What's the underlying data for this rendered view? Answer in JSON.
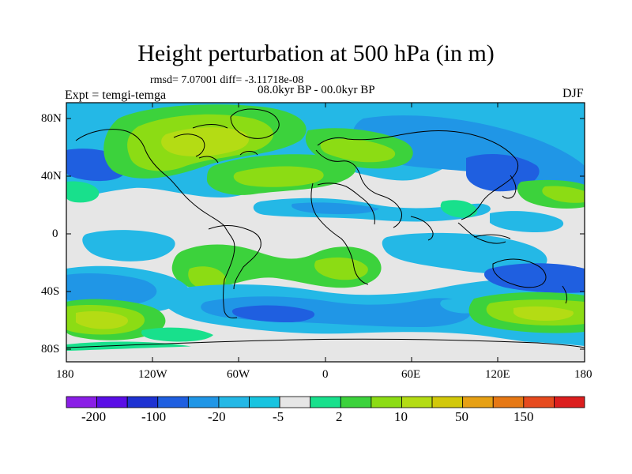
{
  "title": "Height perturbation at 500 hPa (in m)",
  "stats": "rmsd= 7.07001 diff= -3.11718e-08",
  "period": "08.0kyr BP - 00.0kyr BP",
  "experiment": "Expt = temgi-temga",
  "season": "DJF",
  "lat_ticks": [
    "80N",
    "40N",
    "0",
    "40S",
    "80S"
  ],
  "lon_ticks": [
    "180",
    "120W",
    "60W",
    "0",
    "60E",
    "120E",
    "180"
  ],
  "colorbar": {
    "colors": [
      "#8a1ee6",
      "#5a0ee6",
      "#1e32d2",
      "#1f5fe0",
      "#2096e6",
      "#24b8e6",
      "#18c4e0",
      "#e6e6e6",
      "#18e08c",
      "#3cd23c",
      "#8cdc14",
      "#b4dc14",
      "#d2c80a",
      "#e6a014",
      "#e67814",
      "#e64a1e",
      "#dc1e1e"
    ],
    "labels": [
      "-200",
      "-100",
      "-20",
      "-5",
      "2",
      "10",
      "50",
      "150"
    ]
  }
}
